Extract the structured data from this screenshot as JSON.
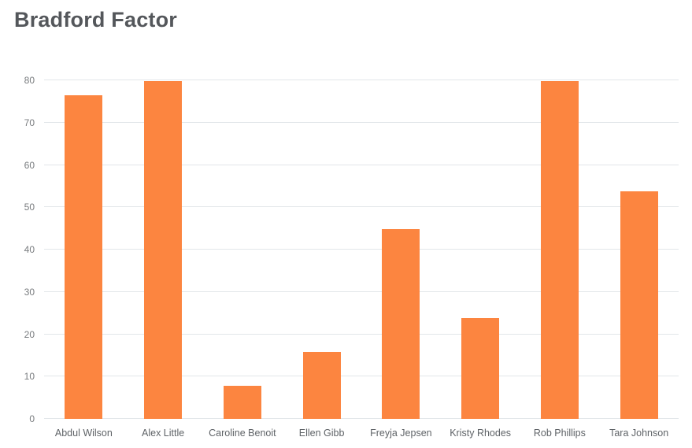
{
  "page_title": "Bradford Factor",
  "chart_data": {
    "type": "bar",
    "title": "Bradford Factor",
    "categories": [
      "Abdul Wilson",
      "Alex Little",
      "Caroline Benoit",
      "Ellen Gibb",
      "Freyja Jepsen",
      "Kristy Rhodes",
      "Rob Phillips",
      "Tara Johnson"
    ],
    "values": [
      76.5,
      79.8,
      7.9,
      15.8,
      44.9,
      23.8,
      79.8,
      53.8
    ],
    "xlabel": "",
    "ylabel": "",
    "ylim": [
      0,
      82
    ],
    "yticks": [
      0,
      10,
      20,
      30,
      40,
      50,
      60,
      70,
      80
    ],
    "grid": true,
    "legend": false,
    "bar_color": "#fc8540",
    "grid_color": "#e2e6e9",
    "ytick_color": "#797c7f",
    "xtick_color": "#5f6367"
  }
}
